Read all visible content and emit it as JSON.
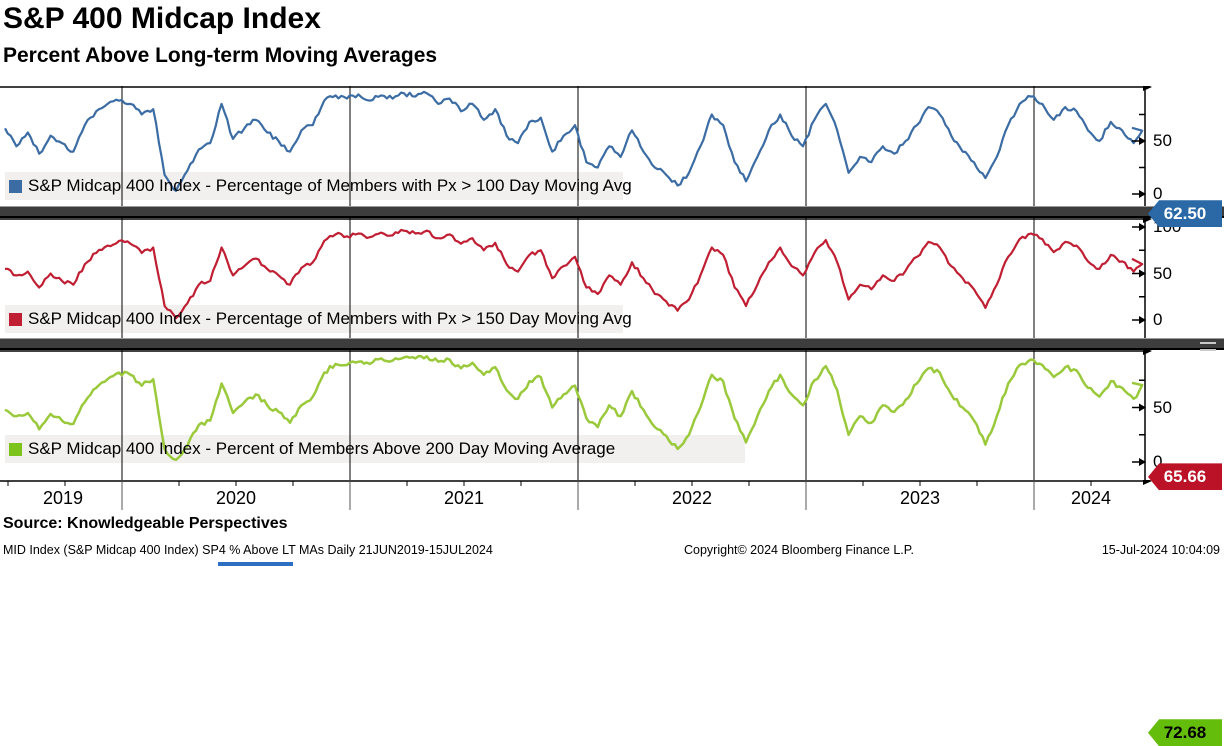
{
  "header": {
    "title": "S&P 400 Midcap Index",
    "subtitle": "Percent Above Long-term Moving Averages"
  },
  "panels": [
    {
      "legend": "S&P Midcap 400 Index - Percentage of Members with Px > 100 Day Moving Avg",
      "axis_labels": [
        "50",
        "0"
      ],
      "tag": "62.50",
      "tag_color": "#2a68a6",
      "tag_text_color": "#ffffff",
      "line_color": "#3b6ca3"
    },
    {
      "legend": "S&P Midcap 400 Index - Percentage of Members with Px > 150 Day Moving Avg",
      "axis_labels": [
        "100",
        "50",
        "0"
      ],
      "tag": "65.66",
      "tag_color": "#bb1227",
      "tag_text_color": "#ffffff",
      "line_color": "#c01f33"
    },
    {
      "legend": "S&P Midcap 400 Index - Percent of Members Above 200 Day Moving Average",
      "axis_labels": [
        "50",
        "0"
      ],
      "tag": "72.68",
      "tag_color": "#64bd0a",
      "tag_text_color": "#000000",
      "line_color": "#9aca3c"
    }
  ],
  "xaxis": {
    "years": [
      "2019",
      "2020",
      "2021",
      "2022",
      "2023",
      "2024"
    ]
  },
  "footer": {
    "source": "Source: Knowledgeable Perspectives",
    "ticker_line": "MID Index (S&P Midcap 400 Index) SP4 % Above LT MAs  Daily 21JUN2019-15JUL2024",
    "copyright": "Copyright© 2024 Bloomberg Finance L.P.",
    "timestamp": "15-Jul-2024 10:04:09"
  },
  "chart_data": {
    "type": "line",
    "title": "S&P 400 Midcap Index - Percent Above Long-term Moving Averages",
    "date_range": "21JUN2019-15JUL2024",
    "frequency": "Daily",
    "ylim": [
      0,
      100
    ],
    "grid": "vertical-year-lines",
    "legend_position": "inside-bottom-left-per-panel",
    "x_tick_labels": [
      "2019",
      "2020",
      "2021",
      "2022",
      "2023",
      "2024"
    ],
    "series": [
      {
        "name": "S&P Midcap 400 Index - Percentage of Members with Px > 100 Day Moving Avg",
        "color": "#3b6ca3",
        "last_value": 62.5,
        "values": [
          62,
          45,
          58,
          38,
          55,
          48,
          40,
          65,
          78,
          85,
          88,
          85,
          75,
          80,
          18,
          3,
          22,
          42,
          48,
          85,
          52,
          62,
          70,
          58,
          50,
          40,
          60,
          65,
          88,
          93,
          90,
          94,
          88,
          93,
          90,
          95,
          92,
          95,
          85,
          90,
          78,
          85,
          70,
          80,
          55,
          48,
          68,
          72,
          40,
          55,
          65,
          30,
          25,
          45,
          35,
          60,
          40,
          25,
          18,
          8,
          20,
          45,
          75,
          65,
          30,
          12,
          35,
          60,
          75,
          55,
          45,
          70,
          85,
          60,
          20,
          35,
          30,
          45,
          38,
          50,
          65,
          82,
          75,
          55,
          40,
          30,
          15,
          35,
          65,
          85,
          92,
          85,
          70,
          82,
          78,
          60,
          50,
          68,
          60,
          48,
          62.5
        ]
      },
      {
        "name": "S&P Midcap 400 Index - Percentage of Members with Px > 150 Day Moving Avg",
        "color": "#c01f33",
        "last_value": 65.66,
        "values": [
          55,
          48,
          52,
          35,
          50,
          42,
          38,
          60,
          72,
          80,
          85,
          82,
          72,
          78,
          15,
          2,
          18,
          38,
          42,
          78,
          48,
          58,
          66,
          55,
          48,
          38,
          56,
          62,
          85,
          92,
          90,
          93,
          89,
          94,
          91,
          96,
          93,
          96,
          88,
          92,
          82,
          88,
          75,
          83,
          60,
          52,
          70,
          75,
          45,
          58,
          68,
          35,
          28,
          48,
          38,
          62,
          45,
          28,
          20,
          10,
          22,
          48,
          78,
          70,
          35,
          15,
          38,
          62,
          78,
          58,
          48,
          72,
          86,
          62,
          22,
          38,
          33,
          48,
          42,
          53,
          68,
          84,
          78,
          58,
          45,
          33,
          13,
          38,
          68,
          87,
          93,
          87,
          73,
          84,
          80,
          63,
          55,
          70,
          63,
          52,
          65.66
        ]
      },
      {
        "name": "S&P Midcap 400 Index - Percent of Members Above 200 Day Moving Average",
        "color": "#9aca3c",
        "last_value": 72.68,
        "values": [
          48,
          42,
          45,
          30,
          44,
          38,
          35,
          55,
          68,
          76,
          82,
          80,
          70,
          76,
          12,
          2,
          15,
          34,
          38,
          72,
          45,
          55,
          62,
          52,
          46,
          36,
          52,
          60,
          82,
          90,
          89,
          92,
          90,
          95,
          93,
          96,
          95,
          97,
          92,
          94,
          86,
          91,
          80,
          87,
          66,
          58,
          74,
          78,
          50,
          62,
          70,
          40,
          32,
          52,
          42,
          65,
          48,
          32,
          24,
          12,
          25,
          50,
          80,
          74,
          40,
          18,
          42,
          65,
          80,
          62,
          52,
          75,
          88,
          66,
          25,
          42,
          36,
          52,
          46,
          57,
          72,
          86,
          82,
          62,
          50,
          38,
          16,
          42,
          72,
          89,
          94,
          89,
          78,
          87,
          84,
          68,
          60,
          74,
          68,
          58,
          72.68
        ]
      }
    ]
  }
}
